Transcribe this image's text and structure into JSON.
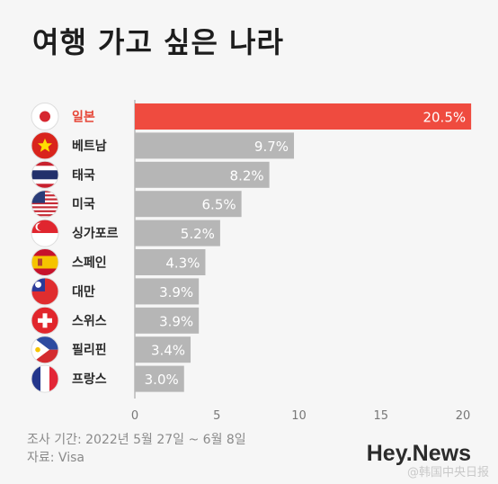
{
  "title": "여행 가고 싶은 나라",
  "chart_data": {
    "type": "bar",
    "orientation": "horizontal",
    "title": "여행 가고 싶은 나라",
    "categories": [
      "일본",
      "베트남",
      "태국",
      "미국",
      "싱가포르",
      "스페인",
      "대만",
      "스위스",
      "필리핀",
      "프랑스"
    ],
    "values": [
      20.5,
      9.7,
      8.2,
      6.5,
      5.2,
      4.3,
      3.9,
      3.9,
      3.4,
      3.0
    ],
    "value_labels": [
      "20.5%",
      "9.7%",
      "8.2%",
      "6.5%",
      "5.2%",
      "4.3%",
      "3.9%",
      "3.9%",
      "3.4%",
      "3.0%"
    ],
    "xlim": [
      0,
      20
    ],
    "xticks": [
      "0",
      "5",
      "10",
      "15",
      "20"
    ],
    "highlight_index": 0,
    "colors": {
      "highlight": "#ef4b3f",
      "bar": "#b6b6b6",
      "highlight_label": "#e64536",
      "label": "#2a2a2a"
    },
    "flags": [
      "japan-flag",
      "vietnam-flag",
      "thailand-flag",
      "usa-flag",
      "singapore-flag",
      "spain-flag",
      "taiwan-flag",
      "switzerland-flag",
      "philippines-flag",
      "france-flag"
    ]
  },
  "footer": {
    "period": "조사 기간: 2022년 5월 27일 ~ 6월 8일",
    "source": "자료: Visa"
  },
  "brand": "Hey.News",
  "watermark": "@韩国中央日报"
}
